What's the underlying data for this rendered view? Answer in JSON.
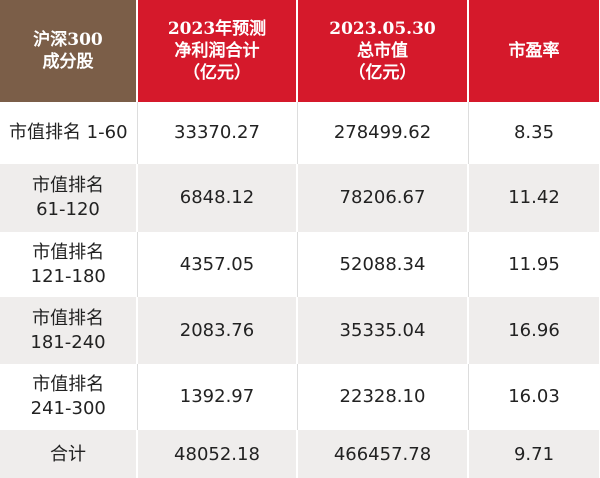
{
  "table": {
    "header": [
      [
        "沪深300",
        "成分股"
      ],
      [
        "2023年预测",
        "净利润合计",
        "（亿元）"
      ],
      [
        "2023.05.30",
        "总市值",
        "（亿元）"
      ],
      [
        "市盈率"
      ]
    ],
    "rows": [
      [
        [
          "市值排名 1-60"
        ],
        "33370.27",
        "278499.62",
        "8.35"
      ],
      [
        [
          "市值排名",
          "61-120"
        ],
        "6848.12",
        "78206.67",
        "11.42"
      ],
      [
        [
          "市值排名",
          "121-180"
        ],
        "4357.05",
        "52088.34",
        "11.95"
      ],
      [
        [
          "市值排名",
          "181-240"
        ],
        "2083.76",
        "35335.04",
        "16.96"
      ],
      [
        [
          "市值排名",
          "241-300"
        ],
        "1392.97",
        "22328.10",
        "16.03"
      ],
      [
        [
          "合计"
        ],
        "48052.18",
        "466457.78",
        "9.71"
      ]
    ]
  }
}
